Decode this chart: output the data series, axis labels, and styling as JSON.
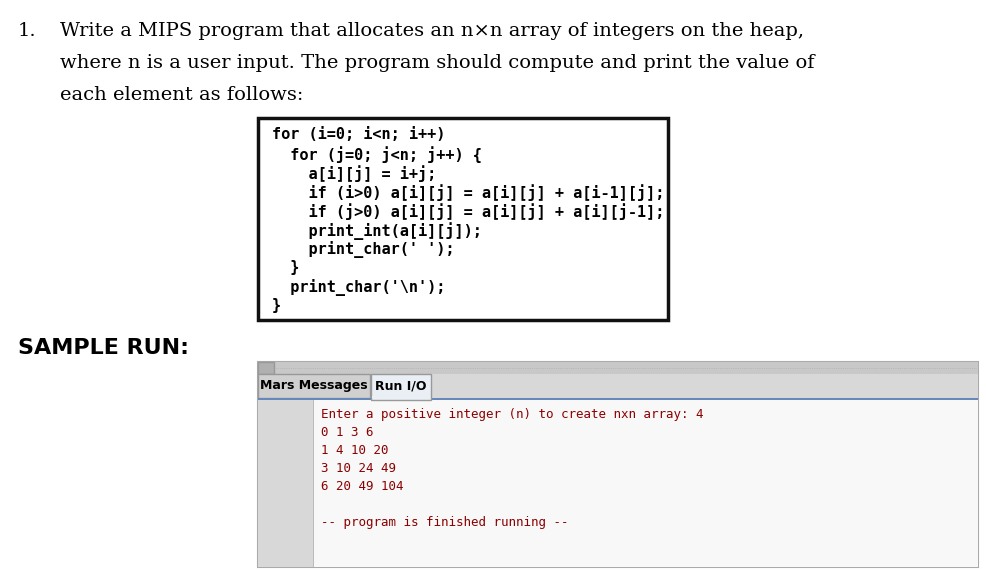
{
  "bg_color": "#ffffff",
  "text_color": "#000000",
  "title_number": "1.",
  "title_text_lines": [
    "Write a MIPS program that allocates an n×n array of integers on the heap,",
    "where n is a user input. The program should compute and print the value of",
    "each element as follows:"
  ],
  "code_lines": [
    "for (i=0; i<n; i++)",
    "  for (j=0; j<n; j++) {",
    "    a[i][j] = i+j;",
    "    if (i>0) a[i][j] = a[i][j] + a[i-1][j];",
    "    if (j>0) a[i][j] = a[i][j] + a[i][j-1];",
    "    print_int(a[i][j]);",
    "    print_char(' ');",
    "  }",
    "  print_char('\\n');",
    "}"
  ],
  "sample_run_label": "SAMPLE RUN:",
  "mars_tab1": "Mars Messages",
  "mars_tab2": "Run I/O",
  "console_lines": [
    "Enter a positive integer (n) to create nxn array: 4",
    "0 1 3 6",
    "1 4 10 20",
    "3 10 24 49",
    "6 20 49 104",
    "",
    "-- program is finished running --"
  ]
}
